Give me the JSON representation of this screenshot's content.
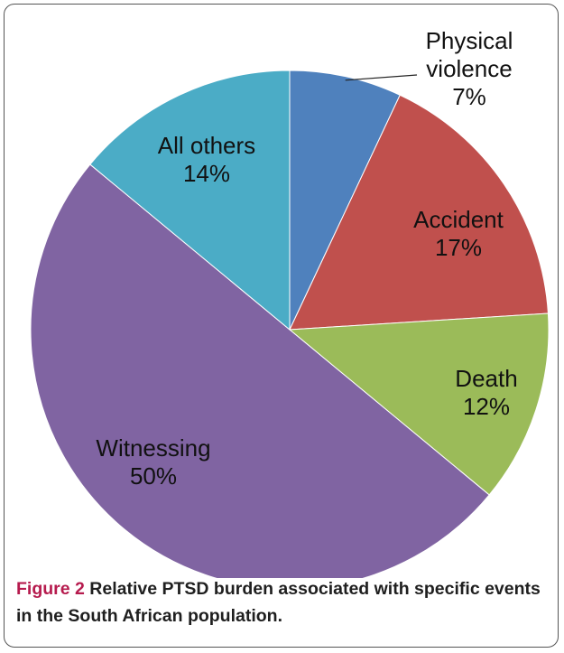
{
  "figure": {
    "label": "Figure 2",
    "caption": "Relative PTSD burden associated with specific events in the South African population."
  },
  "chart_data": {
    "type": "pie",
    "title": "",
    "slices": [
      {
        "label_lines": [
          "Physical",
          "violence"
        ],
        "value": 7,
        "value_label": "7%",
        "color": "#4f81bd"
      },
      {
        "label_lines": [
          "Accident"
        ],
        "value": 17,
        "value_label": "17%",
        "color": "#c0504d"
      },
      {
        "label_lines": [
          "Death"
        ],
        "value": 12,
        "value_label": "12%",
        "color": "#9bbb59"
      },
      {
        "label_lines": [
          "Witnessing"
        ],
        "value": 50,
        "value_label": "50%",
        "color": "#8064a2"
      },
      {
        "label_lines": [
          "All others"
        ],
        "value": 14,
        "value_label": "14%",
        "color": "#4bacc6"
      }
    ],
    "start_angle_deg": 0,
    "direction": "clockwise"
  }
}
